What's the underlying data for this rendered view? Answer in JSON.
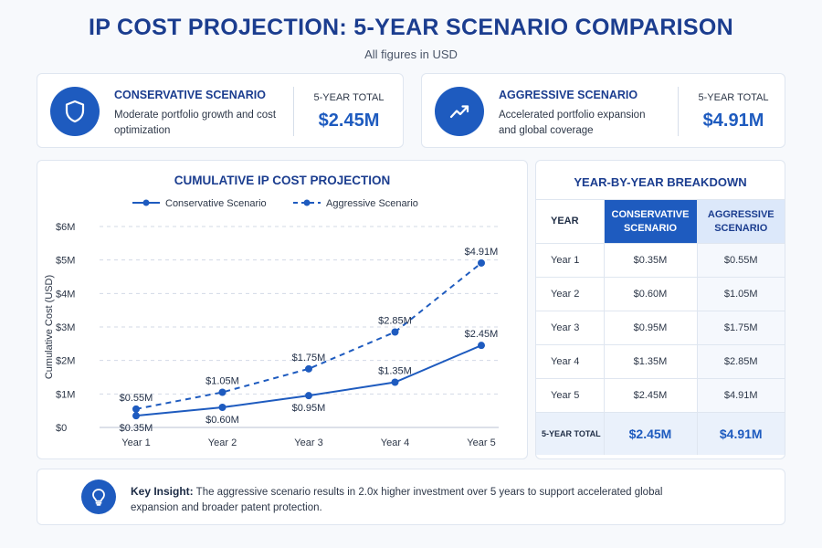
{
  "header": {
    "title": "IP COST PROJECTION: 5-YEAR SCENARIO COMPARISON",
    "subtitle": "All figures in USD"
  },
  "scenarios": [
    {
      "title": "CONSERVATIVE SCENARIO",
      "description": "Moderate portfolio growth and cost optimization",
      "total_label": "5-YEAR TOTAL",
      "total_value": "$2.45M",
      "icon": "shield-icon"
    },
    {
      "title": "AGGRESSIVE SCENARIO",
      "description": "Accelerated portfolio expansion and global coverage",
      "total_label": "5-YEAR TOTAL",
      "total_value": "$4.91M",
      "icon": "trending-up-icon"
    }
  ],
  "chart_data": {
    "type": "line",
    "title": "CUMULATIVE IP COST PROJECTION",
    "xlabel": "",
    "ylabel": "Cumulative Cost (USD)",
    "categories": [
      "Year 1",
      "Year 2",
      "Year 3",
      "Year 4",
      "Year 5"
    ],
    "ylim": [
      0,
      6
    ],
    "yticks": [
      "$0",
      "$1M",
      "$2M",
      "$3M",
      "$4M",
      "$5M",
      "$6M"
    ],
    "grid": true,
    "legend": "top",
    "series": [
      {
        "name": "Conservative Scenario",
        "style": "solid",
        "values": [
          0.35,
          0.6,
          0.95,
          1.35,
          2.45
        ],
        "labels": [
          "$0.35M",
          "$0.60M",
          "$0.95M",
          "$1.35M",
          "$2.45M"
        ]
      },
      {
        "name": "Aggressive Scenario",
        "style": "dashed",
        "values": [
          0.55,
          1.05,
          1.75,
          2.85,
          4.91
        ],
        "labels": [
          "$0.55M",
          "$1.05M",
          "$1.75M",
          "$2.85M",
          "$4.91M"
        ]
      }
    ],
    "colors": {
      "line": "#1e5bbf",
      "grid": "#d3dae6",
      "text": "#2d3748"
    }
  },
  "breakdown": {
    "title": "YEAR-BY-YEAR BREAKDOWN",
    "headers": {
      "year": "YEAR",
      "conservative": "CONSERVATIVE SCENARIO",
      "aggressive": "AGGRESSIVE SCENARIO"
    },
    "rows": [
      {
        "year": "Year 1",
        "conservative": "$0.35M",
        "aggressive": "$0.55M"
      },
      {
        "year": "Year 2",
        "conservative": "$0.60M",
        "aggressive": "$1.05M"
      },
      {
        "year": "Year 3",
        "conservative": "$0.95M",
        "aggressive": "$1.75M"
      },
      {
        "year": "Year 4",
        "conservative": "$1.35M",
        "aggressive": "$2.85M"
      },
      {
        "year": "Year 5",
        "conservative": "$2.45M",
        "aggressive": "$4.91M"
      }
    ],
    "total": {
      "label": "5-YEAR TOTAL",
      "conservative": "$2.45M",
      "aggressive": "$4.91M"
    }
  },
  "insight": {
    "label": "Key Insight:",
    "text": "The aggressive scenario results in 2.0x higher investment over 5 years to support accelerated global expansion and broader patent protection.",
    "icon": "lightbulb-icon"
  },
  "colors": {
    "accent": "#1e5bbf",
    "heading": "#1b3d8f",
    "background": "#f7f9fc"
  }
}
